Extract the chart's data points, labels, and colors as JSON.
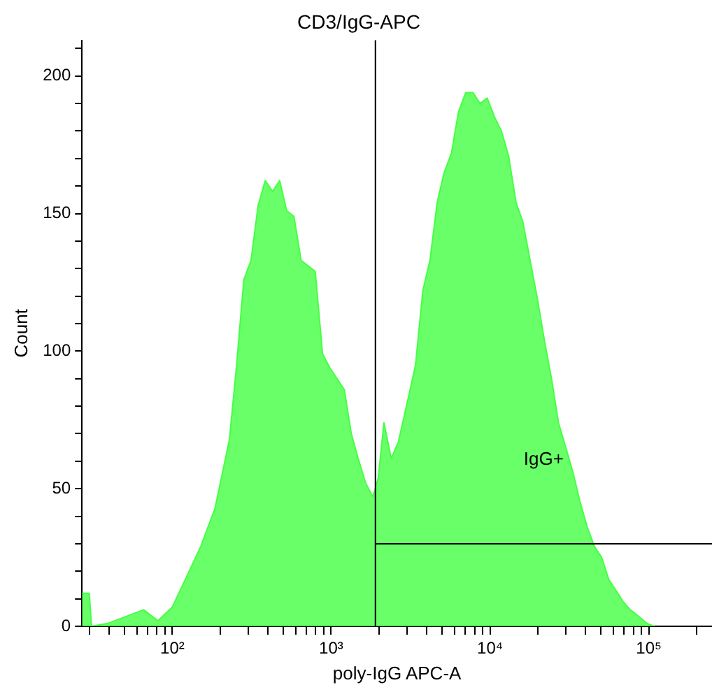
{
  "chart_data": {
    "type": "area",
    "title": "CD3/IgG-APC",
    "xlabel": "poly-IgG APC-A",
    "ylabel": "Count",
    "log": "x",
    "grid": false,
    "legend": false,
    "x": [
      27,
      30,
      31,
      39,
      66,
      81,
      100,
      123,
      151,
      186,
      229,
      254,
      282,
      313,
      347,
      385,
      428,
      474,
      525,
      583,
      647,
      794,
      883,
      980,
      1090,
      1210,
      1340,
      1480,
      1650,
      1830,
      1980,
      2150,
      2390,
      2650,
      3060,
      3400,
      3780,
      4190,
      4650,
      5150,
      5720,
      6340,
      7040,
      7810,
      8660,
      9610,
      10700,
      11800,
      13100,
      14600,
      16100,
      17900,
      19900,
      22000,
      24400,
      27000,
      30000,
      33300,
      37000,
      41000,
      45500,
      50500,
      56000,
      62100,
      68900,
      76400,
      84700,
      97700,
      108600
    ],
    "series": [
      {
        "color": "#44ff44",
        "values": [
          12,
          12,
          0,
          1,
          6,
          2,
          7,
          18,
          29,
          43,
          68,
          95,
          126,
          133,
          153,
          162,
          158,
          162,
          151,
          149,
          133,
          129,
          99,
          94,
          90,
          86,
          70,
          61,
          52,
          47,
          54,
          74,
          61,
          67,
          83,
          95,
          122,
          133,
          154,
          165,
          172,
          187,
          194,
          194,
          190,
          192,
          185,
          180,
          171,
          154,
          147,
          133,
          119,
          104,
          90,
          74,
          65,
          56,
          45,
          36,
          29,
          25,
          17,
          13,
          9,
          6,
          4,
          1,
          0
        ]
      }
    ],
    "xlim": [
      27,
      250000
    ],
    "xticks": [
      {
        "value": 30,
        "label": null
      },
      {
        "value": 40,
        "label": null
      },
      {
        "value": 50,
        "label": null
      },
      {
        "value": 60,
        "label": null
      },
      {
        "value": 70,
        "label": null
      },
      {
        "value": 80,
        "label": null
      },
      {
        "value": 90,
        "label": null
      },
      {
        "value": 100,
        "label": "10²"
      },
      {
        "value": 200,
        "label": null
      },
      {
        "value": 300,
        "label": null
      },
      {
        "value": 400,
        "label": null
      },
      {
        "value": 500,
        "label": null
      },
      {
        "value": 600,
        "label": null
      },
      {
        "value": 700,
        "label": null
      },
      {
        "value": 800,
        "label": null
      },
      {
        "value": 900,
        "label": null
      },
      {
        "value": 1000,
        "label": "10³"
      },
      {
        "value": 2000,
        "label": null
      },
      {
        "value": 3000,
        "label": null
      },
      {
        "value": 4000,
        "label": null
      },
      {
        "value": 5000,
        "label": null
      },
      {
        "value": 6000,
        "label": null
      },
      {
        "value": 7000,
        "label": null
      },
      {
        "value": 8000,
        "label": null
      },
      {
        "value": 9000,
        "label": null
      },
      {
        "value": 10000,
        "label": "10⁴"
      },
      {
        "value": 20000,
        "label": null
      },
      {
        "value": 30000,
        "label": null
      },
      {
        "value": 40000,
        "label": null
      },
      {
        "value": 50000,
        "label": null
      },
      {
        "value": 60000,
        "label": null
      },
      {
        "value": 70000,
        "label": null
      },
      {
        "value": 80000,
        "label": null
      },
      {
        "value": 90000,
        "label": null
      },
      {
        "value": 100000,
        "label": "10⁵"
      },
      {
        "value": 200000,
        "label": null
      }
    ],
    "ylim": [
      0,
      213
    ],
    "yticks": [
      0,
      {
        "value": 10,
        "label": null
      },
      {
        "value": 20,
        "label": null
      },
      {
        "value": 30,
        "label": null
      },
      {
        "value": 40,
        "label": null
      },
      50,
      {
        "value": 60,
        "label": null
      },
      {
        "value": 70,
        "label": null
      },
      {
        "value": 80,
        "label": null
      },
      {
        "value": 90,
        "label": null
      },
      100,
      {
        "value": 110,
        "label": null
      },
      {
        "value": 120,
        "label": null
      },
      {
        "value": 130,
        "label": null
      },
      {
        "value": 140,
        "label": null
      },
      150,
      {
        "value": 160,
        "label": null
      },
      {
        "value": 170,
        "label": null
      },
      {
        "value": 180,
        "label": null
      },
      {
        "value": 190,
        "label": null
      },
      200,
      {
        "value": 210,
        "label": null
      }
    ],
    "ref_lines": [
      {
        "axis": "x",
        "value": 1900,
        "color": "#000000"
      },
      {
        "axis": "y",
        "value": 30,
        "color": "#000000"
      }
    ],
    "annotations": [
      "IgG+"
    ]
  }
}
